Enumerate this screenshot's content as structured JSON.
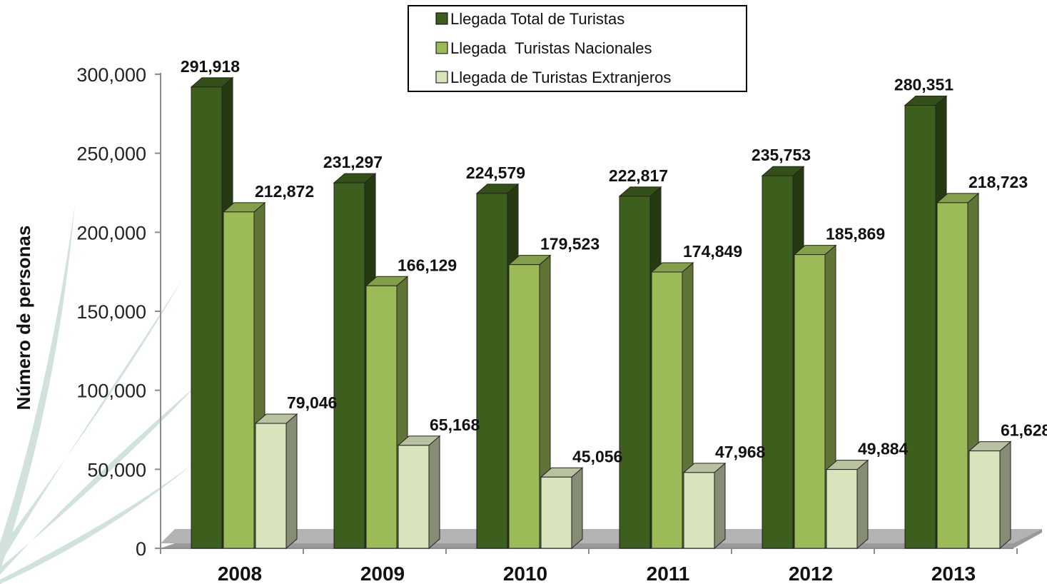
{
  "chart_data": {
    "type": "bar",
    "title": "",
    "xlabel": "",
    "ylabel": "Número de personas",
    "ylim": [
      0,
      300000
    ],
    "y_ticks": [
      "0",
      "50,000",
      "100,000",
      "150,000",
      "200,000",
      "250,000",
      "300,000"
    ],
    "y_tick_values": [
      0,
      50000,
      100000,
      150000,
      200000,
      250000,
      300000
    ],
    "categories": [
      "2008",
      "2009",
      "2010",
      "2011",
      "2012",
      "2013"
    ],
    "series": [
      {
        "name": "Llegada Total de Turistas",
        "color": "#3d5e1c",
        "values": [
          291918,
          231297,
          224579,
          222817,
          235753,
          280351
        ],
        "labels": [
          "291,918",
          "231,297",
          "224,579",
          "222,817",
          "235,753",
          "280,351"
        ]
      },
      {
        "name": "Llegada  Turistas Nacionales",
        "color": "#9bbb59",
        "values": [
          212872,
          166129,
          179523,
          174849,
          185869,
          218723
        ],
        "labels": [
          "212,872",
          "166,129",
          "179,523",
          "174,849",
          "185,869",
          "218,723"
        ]
      },
      {
        "name": "Llegada de Turistas Extranjeros",
        "color": "#d8e4bc",
        "values": [
          79046,
          65168,
          45056,
          47968,
          49884,
          61628
        ],
        "labels": [
          "79,046",
          "65,168",
          "45,056",
          "47,968",
          "49,884",
          "61,628"
        ]
      }
    ],
    "legend_position": "top-center",
    "grid": false,
    "style": "3d-clustered-column"
  }
}
